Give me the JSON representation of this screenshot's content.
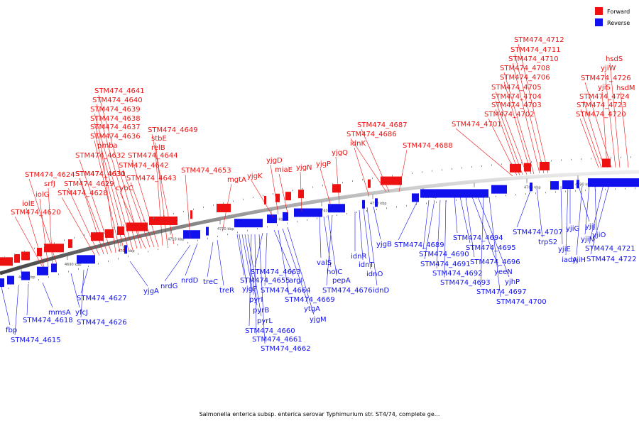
{
  "legend": [
    {
      "label": "Forward",
      "color": "#ee1111"
    },
    {
      "label": "Reverse",
      "color": "#1111ee"
    }
  ],
  "caption": "Salmonella enterica subsp. enterica serovar Typhimurium str. ST4/74, complete ge...",
  "tick_marks": [
    "4680 kbp",
    "4690 kbp",
    "4700 kbp",
    "4710 kbp",
    "4720 kbp",
    "4730 kbp",
    "4740 kbp",
    "4750 kbp",
    "4760 kbp",
    "4770 kbp",
    "4780 kbp",
    "4790 kbp"
  ],
  "forward_genes": [
    "STM474_4620",
    "iolE",
    "iolG",
    "srfJ",
    "STM474_4624",
    "STM474_4628",
    "STM474_4629",
    "STM474_4630",
    "STM474_4631",
    "STM474_4632",
    "pmba",
    "STM474_4636",
    "STM474_4637",
    "STM474_4638",
    "STM474_4639",
    "STM474_4640",
    "STM474_4641",
    "cybC",
    "STM474_4642",
    "STM474_4643",
    "STM474_4644",
    "relB",
    "stbE",
    "STM474_4649",
    "STM474_4653",
    "mgtA",
    "yjgK",
    "yjgD",
    "miaE",
    "yjgN",
    "yjgP",
    "yjgQ",
    "idnK",
    "STM474_4686",
    "STM474_4687",
    "STM474_4688",
    "STM474_4701",
    "STM474_4702",
    "STM474_4703",
    "STM474_4704",
    "STM474_4705",
    "STM474_4706",
    "STM474_4708",
    "STM474_4710",
    "STM474_4711",
    "STM474_4712",
    "STM474_4720",
    "STM474_4723",
    "STM474_4724",
    "yjiS",
    "STM474_4726",
    "yjiW",
    "hsdS",
    "hsdM"
  ],
  "reverse_genes": [
    "fbp",
    "STM474_4615",
    "STM474_4618",
    "mmsA",
    "yfcJ",
    "STM474_4626",
    "STM474_4627",
    "yjgA",
    "nrdG",
    "nrdD",
    "treC",
    "treR",
    "STM474_4655",
    "yjgF",
    "pyrI",
    "pyrB",
    "pyrL",
    "STM474_4660",
    "STM474_4661",
    "STM474_4662",
    "STM474_4663",
    "STM474_4664",
    "argI",
    "STM474_4669",
    "ytgA",
    "yjgM",
    "valS",
    "holC",
    "pepA",
    "STM474_4676",
    "idnR",
    "idnT",
    "idnO",
    "idnD",
    "yjgB",
    "STM474_4689",
    "STM474_4690",
    "STM474_4691",
    "STM474_4692",
    "STM474_4693",
    "STM474_4694",
    "STM474_4695",
    "STM474_4696",
    "yeeN",
    "yjhP",
    "STM474_4697",
    "STM474_4700",
    "STM474_4707",
    "trpS2",
    "iadA",
    "yjiE",
    "yjiG",
    "yjiJ",
    "yjiH",
    "yjiN",
    "yjiO",
    "STM474_4721",
    "STM474_4722"
  ]
}
